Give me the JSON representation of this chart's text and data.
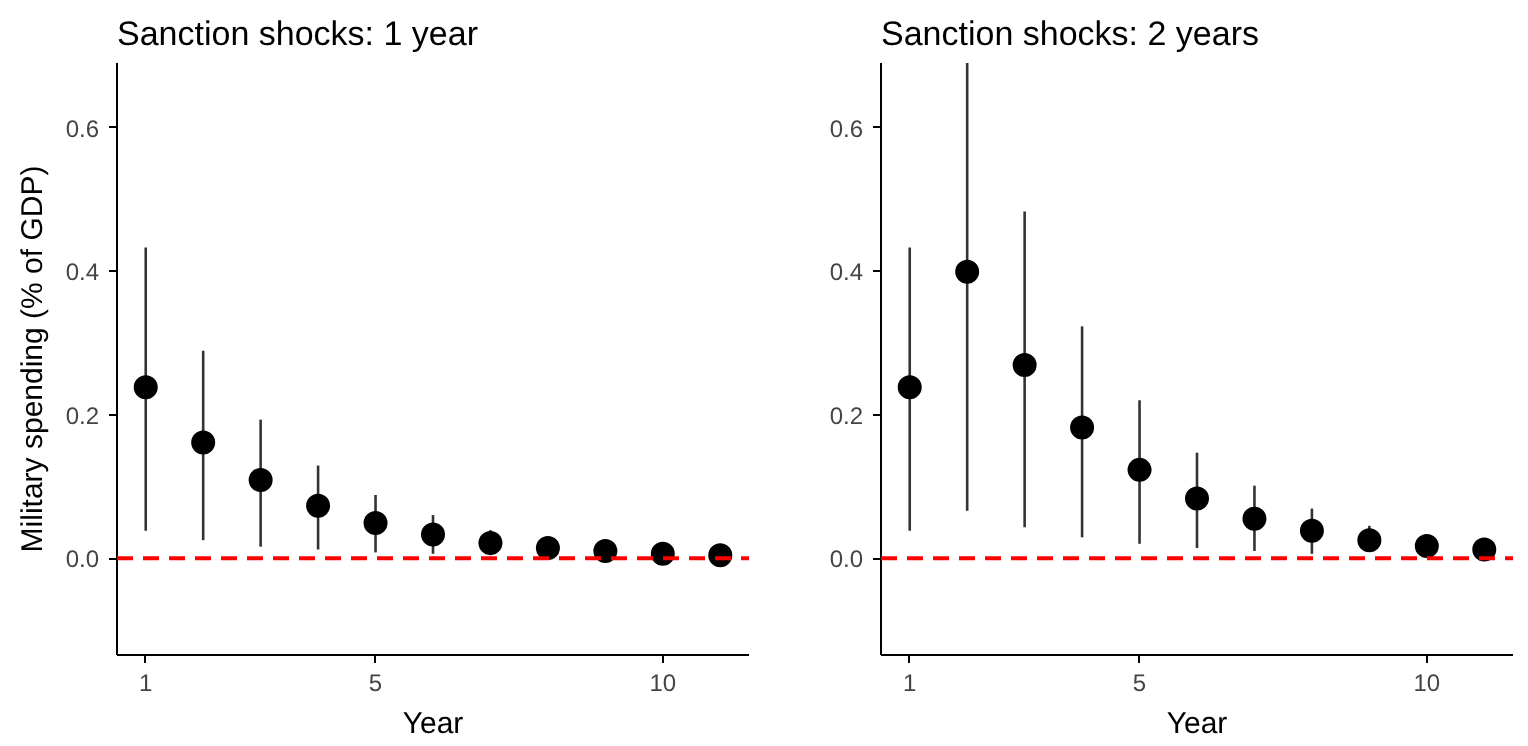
{
  "chart_data": [
    {
      "type": "scatter",
      "title": "Sanction shocks: 1 year",
      "xlabel": "Year",
      "ylabel": "Military spending (% of GDP)",
      "x": [
        1,
        2,
        3,
        4,
        5,
        6,
        7,
        8,
        9,
        10,
        11
      ],
      "values": [
        0.238,
        0.161,
        0.109,
        0.073,
        0.049,
        0.033,
        0.021,
        0.014,
        0.01,
        0.006,
        0.004
      ],
      "errors": [
        [
          0.038,
          0.433
        ],
        [
          0.025,
          0.289
        ],
        [
          0.016,
          0.193
        ],
        [
          0.012,
          0.129
        ],
        [
          0.008,
          0.088
        ],
        [
          0.006,
          0.06
        ],
        [
          0.004,
          0.039
        ],
        null,
        null,
        null,
        null
      ],
      "color": "#000000",
      "marker": "circle",
      "grid": false,
      "xlim": [
        0.5,
        11.5
      ],
      "ylim": [
        -0.135,
        0.69
      ],
      "xticks": [
        1,
        5,
        10
      ],
      "yticks": [
        {
          "value": 0,
          "label": "0.0"
        },
        {
          "value": 0.2,
          "label": "0.2"
        },
        {
          "value": 0.4,
          "label": "0.4"
        },
        {
          "value": 0.6,
          "label": "0.6"
        }
      ],
      "ref_lines": [
        {
          "axis": "y",
          "value": 0,
          "color": "#ff0000",
          "line_style": "dashed"
        }
      ]
    },
    {
      "type": "scatter",
      "title": "Sanction shocks: 2 years",
      "xlabel": "Year",
      "x": [
        1,
        2,
        3,
        4,
        5,
        6,
        7,
        8,
        9,
        10,
        11
      ],
      "values": [
        0.238,
        0.399,
        0.269,
        0.182,
        0.123,
        0.083,
        0.055,
        0.038,
        0.025,
        0.017,
        0.012
      ],
      "errors": [
        [
          0.038,
          0.433
        ],
        [
          0.066,
          0.69
        ],
        [
          0.043,
          0.483
        ],
        [
          0.029,
          0.323
        ],
        [
          0.02,
          0.22
        ],
        [
          0.014,
          0.147
        ],
        [
          0.01,
          0.101
        ],
        [
          0.006,
          0.069
        ],
        [
          0.01,
          0.045
        ],
        null,
        null
      ],
      "color": "#000000",
      "marker": "circle",
      "grid": false,
      "xlim": [
        0.5,
        11.5
      ],
      "ylim": [
        -0.135,
        0.69
      ],
      "xticks": [
        1,
        5,
        10
      ],
      "yticks": [
        {
          "value": 0,
          "label": "0.0"
        },
        {
          "value": 0.2,
          "label": "0.2"
        },
        {
          "value": 0.4,
          "label": "0.4"
        },
        {
          "value": 0.6,
          "label": "0.6"
        }
      ],
      "ref_lines": [
        {
          "axis": "y",
          "value": 0,
          "color": "#ff0000",
          "line_style": "dashed"
        }
      ]
    }
  ]
}
